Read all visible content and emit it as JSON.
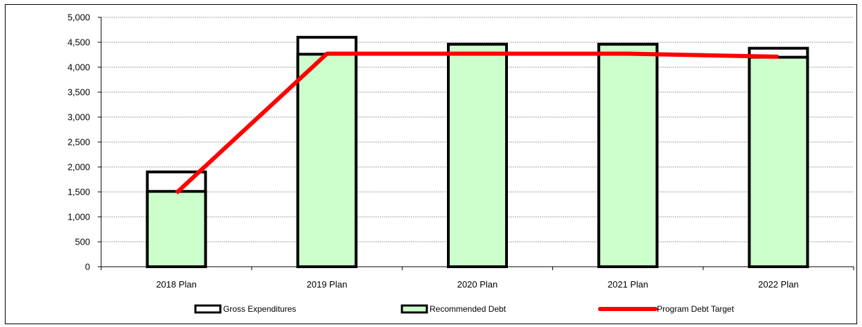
{
  "chart_data": {
    "type": "bar",
    "categories": [
      "2018 Plan",
      "2019 Plan",
      "2020 Plan",
      "2021 Plan",
      "2022 Plan"
    ],
    "series": [
      {
        "name": "Gross Expenditures",
        "kind": "bar",
        "values": [
          1900,
          4600,
          4460,
          4460,
          4380
        ],
        "fill": "#ffffff",
        "stroke": "#000000"
      },
      {
        "name": "Recommended Debt",
        "kind": "bar",
        "values": [
          1510,
          4260,
          4460,
          4460,
          4200
        ],
        "fill": "#ccffcc",
        "stroke": "#000000"
      },
      {
        "name": "Program Debt Target",
        "kind": "line",
        "values": [
          1480,
          4270,
          4270,
          4270,
          4210
        ],
        "color": "#ff0000"
      }
    ],
    "ylim": [
      0,
      5000
    ],
    "yticks": [
      0,
      500,
      1000,
      1500,
      2000,
      2500,
      3000,
      3500,
      4000,
      4500,
      5000
    ],
    "ytick_labels": [
      "0",
      "500",
      "1,000",
      "1,500",
      "2,000",
      "2,500",
      "3,000",
      "3,500",
      "4,000",
      "4,500",
      "5,000"
    ],
    "grid": true,
    "legend_position": "bottom",
    "title": "",
    "xlabel": "",
    "ylabel": ""
  }
}
